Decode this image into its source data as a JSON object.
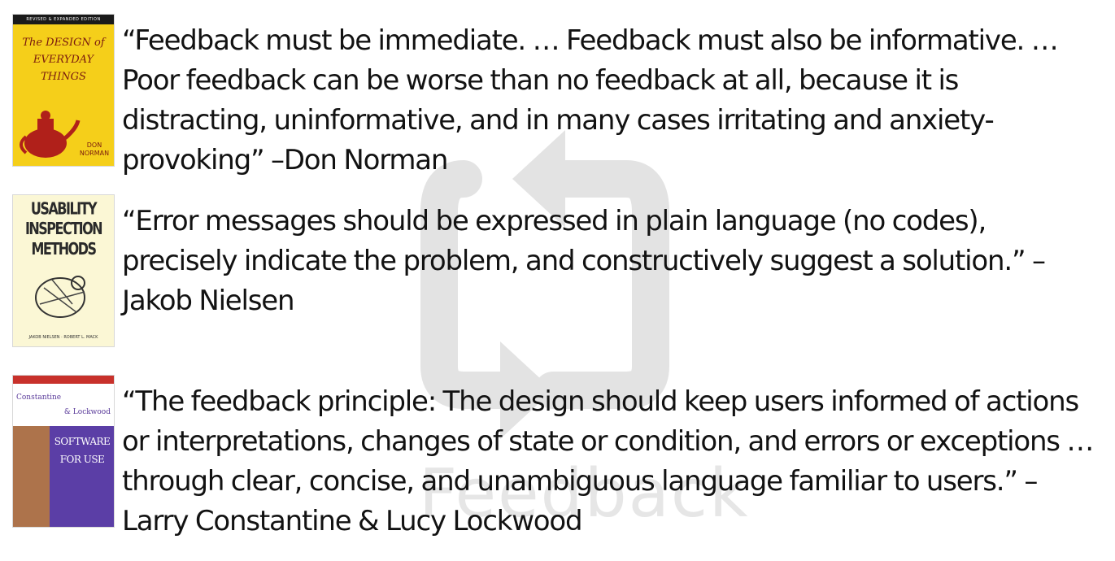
{
  "watermark": {
    "label": "Feedback",
    "icon": "refresh-cycle-icon"
  },
  "quotes": [
    {
      "text": "“Feedback must be immediate. … Feedback must also be informative. … Poor feedback can be worse than no feedback at all, because it is distracting, uninformative, and in many cases irritating and anxiety-provoking” –Don Norman",
      "book": {
        "banner": "REVISED & EXPANDED EDITION",
        "title": "The DESIGN of EVERYDAY THINGS",
        "author": "DON NORMAN",
        "color": "#f5cf1a"
      }
    },
    {
      "text": "“Error messages should be expressed in plain language (no codes), precisely indicate the problem, and constructively suggest a solution.” –Jakob Nielsen",
      "book": {
        "title": "USABILITY INSPECTION METHODS",
        "editors": "JAKOB NIELSEN · ROBERT L. MACK",
        "color": "#fbf7d5"
      }
    },
    {
      "text": "“The feedback principle: The design should keep users informed of actions or interpretations, changes of state or condition, and errors or exceptions … through clear, concise, and unambiguous language familiar to users.” –Larry Constantine & Lucy Lockwood",
      "book": {
        "author1": "Constantine",
        "author2": "& Lockwood",
        "title": "SOFTWARE FOR USE",
        "color": "#5b3ea6"
      }
    }
  ]
}
